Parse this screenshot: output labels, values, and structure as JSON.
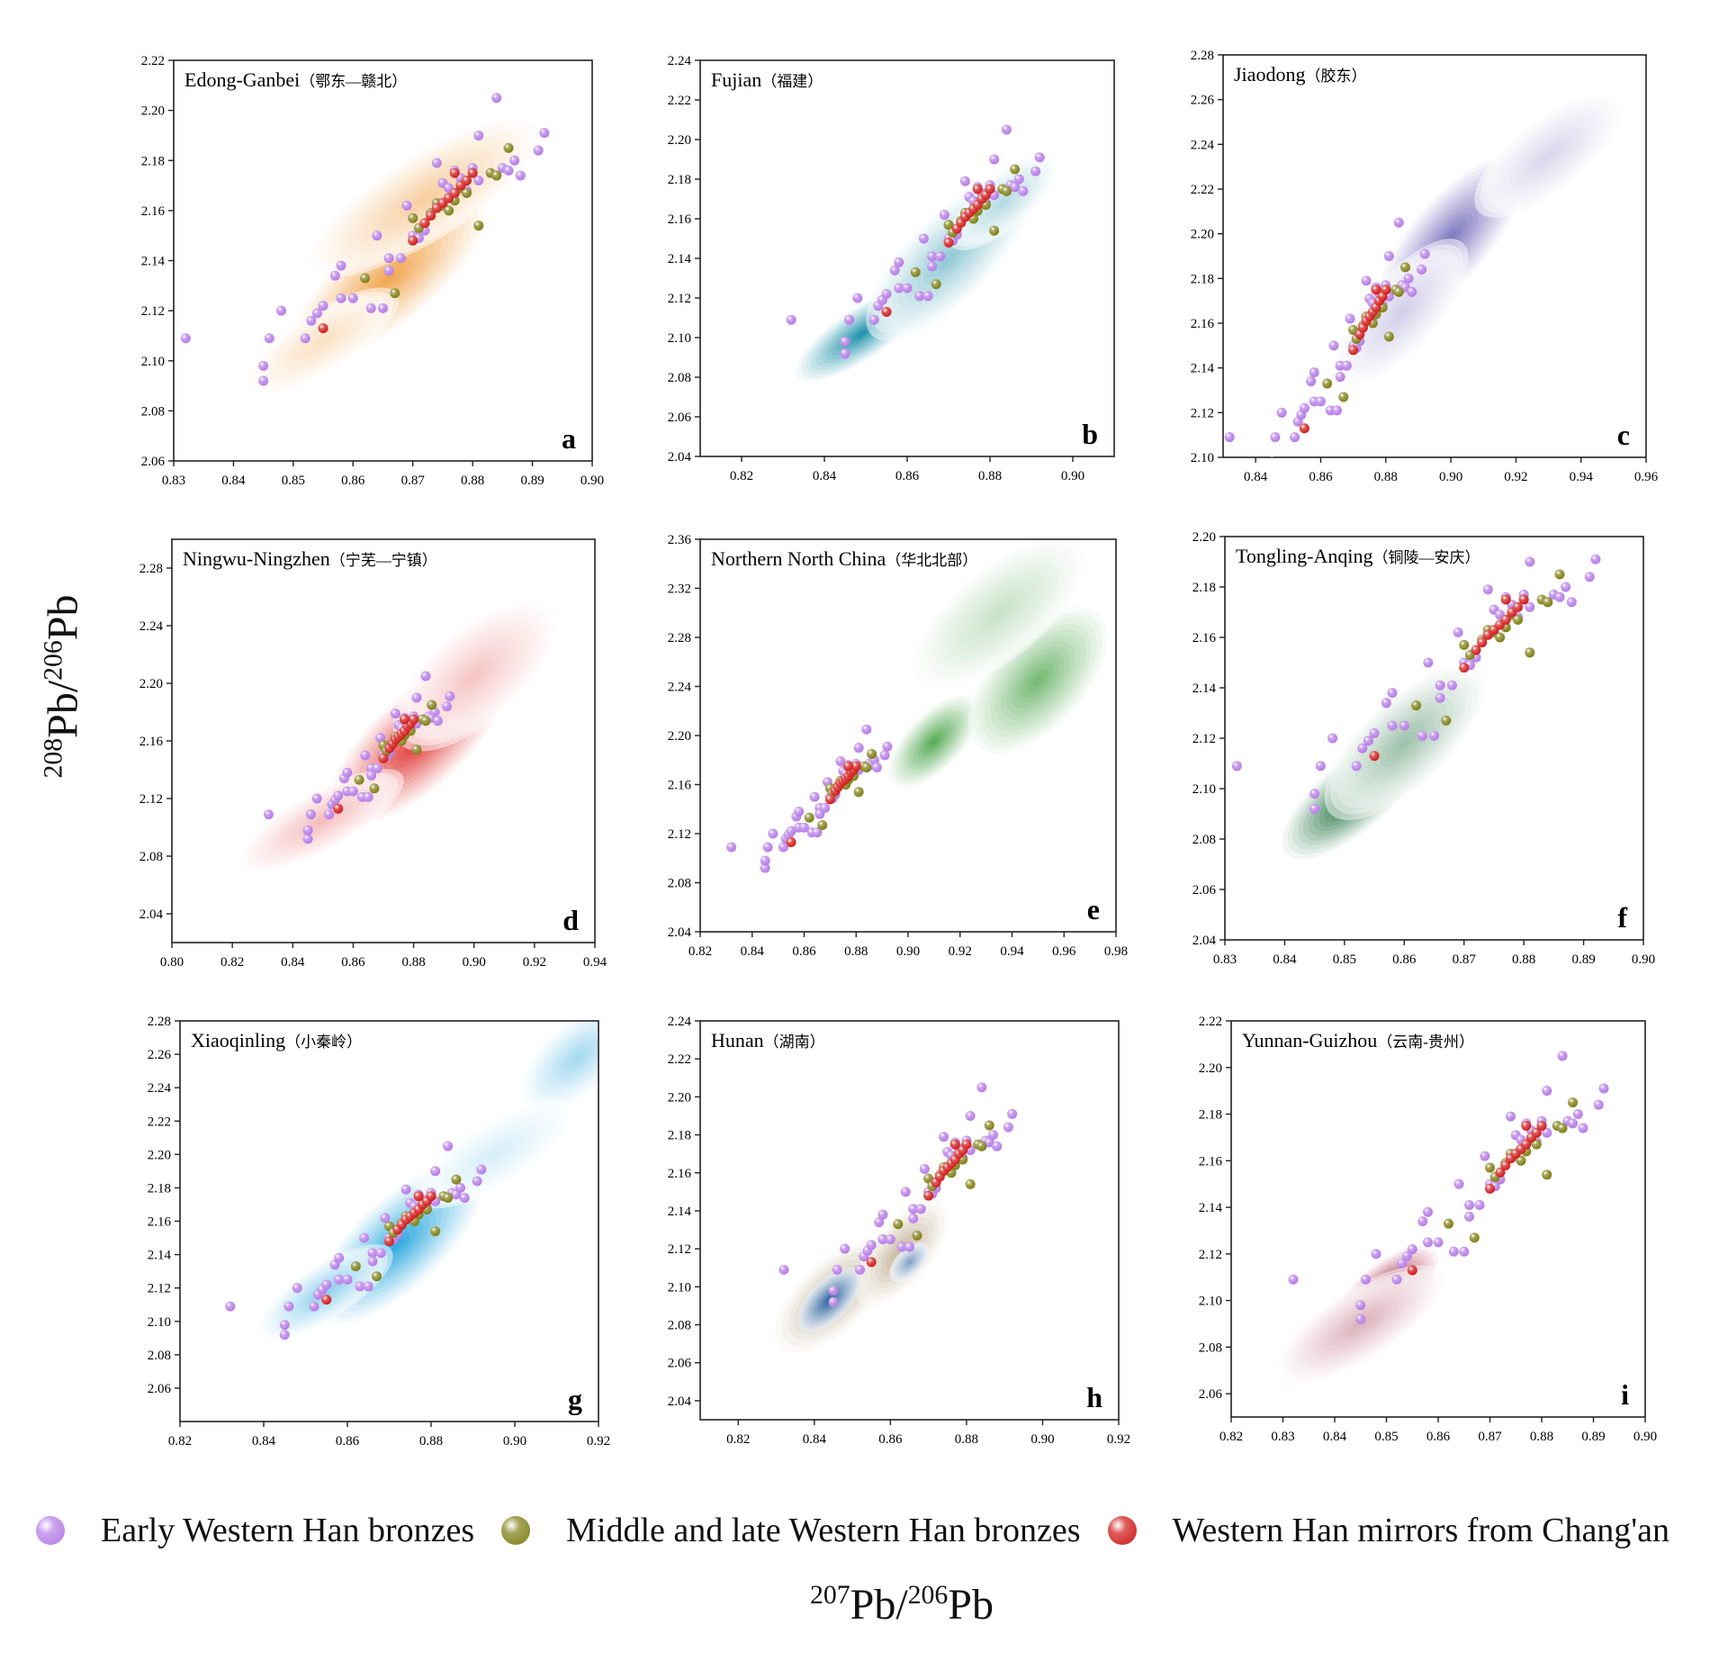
{
  "axis_labels": {
    "x_mass": "207",
    "x_rest": "Pb/",
    "x_mass2": "206",
    "x_rest2": "Pb",
    "y_mass": "208",
    "y_rest": "Pb/",
    "y_mass2": "206",
    "y_rest2": "Pb"
  },
  "legend": [
    {
      "label": "Early Western Han bronzes",
      "color": "#b57ae6"
    },
    {
      "label": "Middle and late Western Han bronzes",
      "color": "#7d7d12"
    },
    {
      "label": "Western Han mirrors from Chang'an",
      "color": "#d01818"
    }
  ],
  "chart_data": [
    {
      "type": "scatter",
      "panel_letter": "a",
      "title": "Edong-Ganbei",
      "title_cn": "（鄂东—赣北）",
      "xlim": [
        0.83,
        0.9
      ],
      "ylim": [
        2.06,
        2.22
      ],
      "xticks": [
        "0.83",
        "0.84",
        "0.85",
        "0.86",
        "0.87",
        "0.88",
        "0.89",
        "0.90"
      ],
      "yticks": [
        "2.06",
        "2.08",
        "2.10",
        "2.12",
        "2.14",
        "2.16",
        "2.18",
        "2.20",
        "2.22"
      ],
      "density_color": "#f0a24a",
      "density": [
        {
          "x": 0.866,
          "y": 2.133,
          "sx": 0.01,
          "sy": 0.02,
          "r": 0.75,
          "w": 1.0
        },
        {
          "x": 0.872,
          "y": 2.165,
          "sx": 0.012,
          "sy": 0.018,
          "r": 0.7,
          "w": 0.55
        },
        {
          "x": 0.855,
          "y": 2.108,
          "sx": 0.008,
          "sy": 0.012,
          "r": 0.6,
          "w": 0.35
        }
      ]
    },
    {
      "type": "scatter",
      "panel_letter": "b",
      "title": "Fujian",
      "title_cn": "（福建）",
      "xlim": [
        0.81,
        0.91
      ],
      "ylim": [
        2.04,
        2.24
      ],
      "xticks": [
        "0.82",
        "0.84",
        "0.86",
        "0.88",
        "0.90"
      ],
      "yticks": [
        "2.04",
        "2.06",
        "2.08",
        "2.10",
        "2.12",
        "2.14",
        "2.16",
        "2.18",
        "2.20",
        "2.22",
        "2.24"
      ],
      "density_color": "#1c8fa8",
      "density": [
        {
          "x": 0.849,
          "y": 2.102,
          "sx": 0.01,
          "sy": 0.014,
          "r": 0.75,
          "w": 1.0
        },
        {
          "x": 0.87,
          "y": 2.14,
          "sx": 0.012,
          "sy": 0.025,
          "r": 0.85,
          "w": 0.5
        },
        {
          "x": 0.883,
          "y": 2.168,
          "sx": 0.008,
          "sy": 0.014,
          "r": 0.7,
          "w": 0.35
        }
      ]
    },
    {
      "type": "scatter",
      "panel_letter": "c",
      "title": "Jiaodong",
      "title_cn": "（胶东）",
      "xlim": [
        0.83,
        0.96
      ],
      "ylim": [
        2.1,
        2.28
      ],
      "xticks": [
        "0.84",
        "0.86",
        "0.88",
        "0.90",
        "0.92",
        "0.94",
        "0.96"
      ],
      "yticks": [
        "2.10",
        "2.12",
        "2.14",
        "2.16",
        "2.18",
        "2.20",
        "2.22",
        "2.24",
        "2.26",
        "2.28"
      ],
      "density_color": "#7a73bd",
      "density": [
        {
          "x": 0.9,
          "y": 2.198,
          "sx": 0.013,
          "sy": 0.022,
          "r": 0.7,
          "w": 1.0
        },
        {
          "x": 0.93,
          "y": 2.235,
          "sx": 0.014,
          "sy": 0.016,
          "r": 0.6,
          "w": 0.3
        },
        {
          "x": 0.885,
          "y": 2.165,
          "sx": 0.012,
          "sy": 0.02,
          "r": 0.7,
          "w": 0.35
        }
      ]
    },
    {
      "type": "scatter",
      "panel_letter": "d",
      "title": "Ningwu-Ningzhen",
      "title_cn": "（宁芜—宁镇）",
      "xlim": [
        0.8,
        0.94
      ],
      "ylim": [
        2.02,
        2.3
      ],
      "xticks": [
        "0.80",
        "0.82",
        "0.84",
        "0.86",
        "0.88",
        "0.90",
        "0.92",
        "0.94"
      ],
      "yticks": [
        "2.04",
        "2.08",
        "2.12",
        "2.16",
        "2.20",
        "2.24",
        "2.28"
      ],
      "density_color": "#e03535",
      "density": [
        {
          "x": 0.881,
          "y": 2.158,
          "sx": 0.017,
          "sy": 0.032,
          "r": 0.6,
          "w": 1.0
        },
        {
          "x": 0.85,
          "y": 2.105,
          "sx": 0.017,
          "sy": 0.02,
          "r": 0.6,
          "w": 0.35
        },
        {
          "x": 0.9,
          "y": 2.205,
          "sx": 0.016,
          "sy": 0.03,
          "r": 0.5,
          "w": 0.3
        }
      ]
    },
    {
      "type": "scatter",
      "panel_letter": "e",
      "title": "Northern North China",
      "title_cn": "（华北北部）",
      "xlim": [
        0.82,
        0.98
      ],
      "ylim": [
        2.04,
        2.36
      ],
      "xticks": [
        "0.82",
        "0.84",
        "0.86",
        "0.88",
        "0.90",
        "0.92",
        "0.94",
        "0.96",
        "0.98"
      ],
      "yticks": [
        "2.04",
        "2.08",
        "2.12",
        "2.16",
        "2.20",
        "2.24",
        "2.28",
        "2.32",
        "2.36"
      ],
      "density_color": "#3f9e3f",
      "density": [
        {
          "x": 0.91,
          "y": 2.195,
          "sx": 0.01,
          "sy": 0.022,
          "r": 0.5,
          "w": 0.9
        },
        {
          "x": 0.95,
          "y": 2.245,
          "sx": 0.015,
          "sy": 0.035,
          "r": 0.3,
          "w": 0.75
        },
        {
          "x": 0.935,
          "y": 2.3,
          "sx": 0.02,
          "sy": 0.035,
          "r": 0.5,
          "w": 0.3
        }
      ]
    },
    {
      "type": "scatter",
      "panel_letter": "f",
      "title": "Tongling-Anqing",
      "title_cn": "（铜陵—安庆）",
      "xlim": [
        0.83,
        0.9
      ],
      "ylim": [
        2.04,
        2.2
      ],
      "xticks": [
        "0.83",
        "0.84",
        "0.85",
        "0.86",
        "0.87",
        "0.88",
        "0.89",
        "0.90"
      ],
      "yticks": [
        "2.04",
        "2.06",
        "2.08",
        "2.10",
        "2.12",
        "2.14",
        "2.16",
        "2.18",
        "2.20"
      ],
      "density_color": "#1a6e3a",
      "density": [
        {
          "x": 0.851,
          "y": 2.096,
          "sx": 0.007,
          "sy": 0.014,
          "r": 0.65,
          "w": 1.0
        },
        {
          "x": 0.86,
          "y": 2.118,
          "sx": 0.008,
          "sy": 0.018,
          "r": 0.7,
          "w": 0.45
        }
      ]
    },
    {
      "type": "scatter",
      "panel_letter": "g",
      "title": "Xiaoqinling",
      "title_cn": "（小秦岭）",
      "xlim": [
        0.82,
        0.92
      ],
      "ylim": [
        2.04,
        2.28
      ],
      "xticks": [
        "0.82",
        "0.84",
        "0.86",
        "0.88",
        "0.90",
        "0.92"
      ],
      "yticks": [
        "2.06",
        "2.08",
        "2.10",
        "2.12",
        "2.14",
        "2.16",
        "2.18",
        "2.20",
        "2.22",
        "2.24",
        "2.26",
        "2.28"
      ],
      "density_color": "#2aa7de",
      "density": [
        {
          "x": 0.872,
          "y": 2.146,
          "sx": 0.012,
          "sy": 0.028,
          "r": 0.7,
          "w": 1.0
        },
        {
          "x": 0.855,
          "y": 2.118,
          "sx": 0.01,
          "sy": 0.016,
          "r": 0.6,
          "w": 0.55
        },
        {
          "x": 0.915,
          "y": 2.258,
          "sx": 0.008,
          "sy": 0.018,
          "r": 0.4,
          "w": 0.45
        },
        {
          "x": 0.895,
          "y": 2.2,
          "sx": 0.012,
          "sy": 0.018,
          "r": 0.5,
          "w": 0.2
        }
      ]
    },
    {
      "type": "scatter",
      "panel_letter": "h",
      "title": "Hunan",
      "title_cn": "（湖南）",
      "xlim": [
        0.81,
        0.92
      ],
      "ylim": [
        2.03,
        2.24
      ],
      "xticks": [
        "0.82",
        "0.84",
        "0.86",
        "0.88",
        "0.90",
        "0.92"
      ],
      "yticks": [
        "2.04",
        "2.06",
        "2.08",
        "2.10",
        "2.12",
        "2.14",
        "2.16",
        "2.18",
        "2.20",
        "2.22",
        "2.24"
      ],
      "density_color": "#27609a",
      "density": [
        {
          "x": 0.844,
          "y": 2.093,
          "sx": 0.005,
          "sy": 0.01,
          "r": 0.5,
          "w": 1.0
        },
        {
          "x": 0.865,
          "y": 2.113,
          "sx": 0.003,
          "sy": 0.006,
          "r": 0.3,
          "w": 0.6
        }
      ],
      "secondary_color": "#a8906a",
      "secondary": [
        {
          "x": 0.845,
          "y": 2.095,
          "sx": 0.009,
          "sy": 0.017,
          "r": 0.5,
          "w": 0.9
        },
        {
          "x": 0.863,
          "y": 2.118,
          "sx": 0.007,
          "sy": 0.017,
          "r": 0.4,
          "w": 0.8
        }
      ]
    },
    {
      "type": "scatter",
      "panel_letter": "i",
      "title": "Yunnan-Guizhou",
      "title_cn": "（云南-贵州）",
      "xlim": [
        0.82,
        0.9
      ],
      "ylim": [
        2.05,
        2.22
      ],
      "xticks": [
        "0.82",
        "0.83",
        "0.84",
        "0.85",
        "0.86",
        "0.87",
        "0.88",
        "0.89",
        "0.90"
      ],
      "yticks": [
        "2.06",
        "2.08",
        "2.10",
        "2.12",
        "2.14",
        "2.16",
        "2.18",
        "2.20",
        "2.22"
      ],
      "density_color": "#9d1736",
      "density": [
        {
          "x": 0.85,
          "y": 2.104,
          "sx": 0.006,
          "sy": 0.011,
          "r": 0.45,
          "w": 1.0
        },
        {
          "x": 0.845,
          "y": 2.09,
          "sx": 0.01,
          "sy": 0.014,
          "r": 0.5,
          "w": 0.35
        }
      ]
    }
  ],
  "points": {
    "early": [
      [
        0.832,
        2.109
      ],
      [
        0.845,
        2.092
      ],
      [
        0.845,
        2.098
      ],
      [
        0.846,
        2.109
      ],
      [
        0.848,
        2.12
      ],
      [
        0.852,
        2.109
      ],
      [
        0.853,
        2.116
      ],
      [
        0.854,
        2.119
      ],
      [
        0.855,
        2.122
      ],
      [
        0.857,
        2.134
      ],
      [
        0.858,
        2.138
      ],
      [
        0.858,
        2.125
      ],
      [
        0.86,
        2.125
      ],
      [
        0.863,
        2.121
      ],
      [
        0.864,
        2.15
      ],
      [
        0.865,
        2.121
      ],
      [
        0.866,
        2.141
      ],
      [
        0.866,
        2.136
      ],
      [
        0.868,
        2.141
      ],
      [
        0.869,
        2.162
      ],
      [
        0.87,
        2.15
      ],
      [
        0.871,
        2.149
      ],
      [
        0.872,
        2.152
      ],
      [
        0.874,
        2.179
      ],
      [
        0.875,
        2.171
      ],
      [
        0.876,
        2.169
      ],
      [
        0.877,
        2.176
      ],
      [
        0.878,
        2.173
      ],
      [
        0.879,
        2.168
      ],
      [
        0.88,
        2.177
      ],
      [
        0.88,
        2.175
      ],
      [
        0.881,
        2.19
      ],
      [
        0.881,
        2.172
      ],
      [
        0.884,
        2.174
      ],
      [
        0.884,
        2.205
      ],
      [
        0.885,
        2.177
      ],
      [
        0.886,
        2.176
      ],
      [
        0.887,
        2.18
      ],
      [
        0.888,
        2.174
      ],
      [
        0.891,
        2.184
      ],
      [
        0.892,
        2.191
      ]
    ],
    "middle": [
      [
        0.862,
        2.133
      ],
      [
        0.867,
        2.127
      ],
      [
        0.87,
        2.157
      ],
      [
        0.871,
        2.153
      ],
      [
        0.873,
        2.159
      ],
      [
        0.874,
        2.163
      ],
      [
        0.875,
        2.162
      ],
      [
        0.876,
        2.16
      ],
      [
        0.877,
        2.164
      ],
      [
        0.878,
        2.169
      ],
      [
        0.879,
        2.167
      ],
      [
        0.881,
        2.154
      ],
      [
        0.883,
        2.175
      ],
      [
        0.884,
        2.174
      ],
      [
        0.886,
        2.185
      ]
    ],
    "mirrors": [
      [
        0.855,
        2.113
      ],
      [
        0.87,
        2.148
      ],
      [
        0.872,
        2.155
      ],
      [
        0.873,
        2.158
      ],
      [
        0.874,
        2.161
      ],
      [
        0.875,
        2.163
      ],
      [
        0.876,
        2.165
      ],
      [
        0.877,
        2.167
      ],
      [
        0.878,
        2.17
      ],
      [
        0.879,
        2.172
      ],
      [
        0.88,
        2.175
      ],
      [
        0.877,
        2.175
      ]
    ]
  }
}
